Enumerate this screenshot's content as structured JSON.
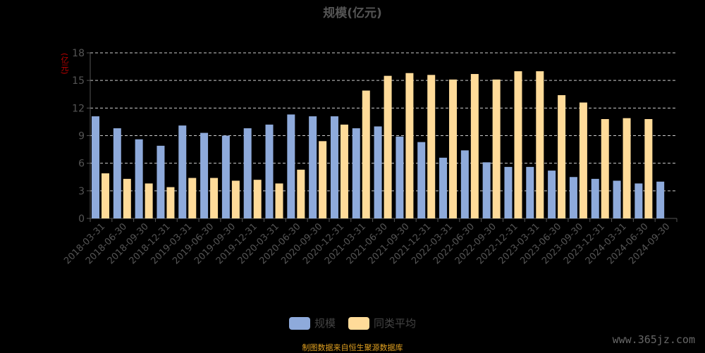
{
  "title": "规模(亿元)",
  "unit_label": "(亿元)",
  "source": "制图数据来自恒生聚源数据库",
  "watermark": "www.365jz.com",
  "colors": {
    "series1": "#8eaadb",
    "series2": "#ffdb99",
    "axis": "#555555",
    "grid": "#cccccc"
  },
  "chart_data": {
    "type": "bar",
    "title": "规模(亿元)",
    "ylabel": "(亿元)",
    "ylim": [
      0,
      18
    ],
    "yticks": [
      0,
      3,
      6,
      9,
      12,
      15,
      18
    ],
    "grid": true,
    "legend_position": "bottom",
    "categories": [
      "2018-03-31",
      "2018-06-30",
      "2018-09-30",
      "2018-12-31",
      "2019-03-31",
      "2019-06-30",
      "2019-09-30",
      "2019-12-31",
      "2020-03-31",
      "2020-06-30",
      "2020-09-30",
      "2020-12-31",
      "2021-03-31",
      "2021-06-30",
      "2021-09-30",
      "2021-12-31",
      "2022-03-31",
      "2022-06-30",
      "2022-09-30",
      "2022-12-31",
      "2023-03-31",
      "2023-06-30",
      "2023-09-30",
      "2023-12-31",
      "2024-03-31",
      "2024-06-30",
      "2024-09-30"
    ],
    "series": [
      {
        "name": "规模",
        "values": [
          11.1,
          9.8,
          8.6,
          7.9,
          10.1,
          9.3,
          9.0,
          9.8,
          10.2,
          11.3,
          11.1,
          11.1,
          9.8,
          10.0,
          8.9,
          8.3,
          6.6,
          7.4,
          6.1,
          5.6,
          5.6,
          5.2,
          4.5,
          4.3,
          4.1,
          3.8,
          4.0
        ]
      },
      {
        "name": "同类平均",
        "values": [
          4.9,
          4.3,
          3.8,
          3.4,
          4.4,
          4.4,
          4.1,
          4.2,
          3.8,
          5.3,
          8.4,
          10.2,
          13.9,
          15.5,
          15.8,
          15.6,
          15.1,
          15.7,
          15.1,
          16.0,
          16.0,
          13.4,
          12.6,
          10.8,
          10.9,
          10.8,
          null
        ]
      }
    ]
  }
}
